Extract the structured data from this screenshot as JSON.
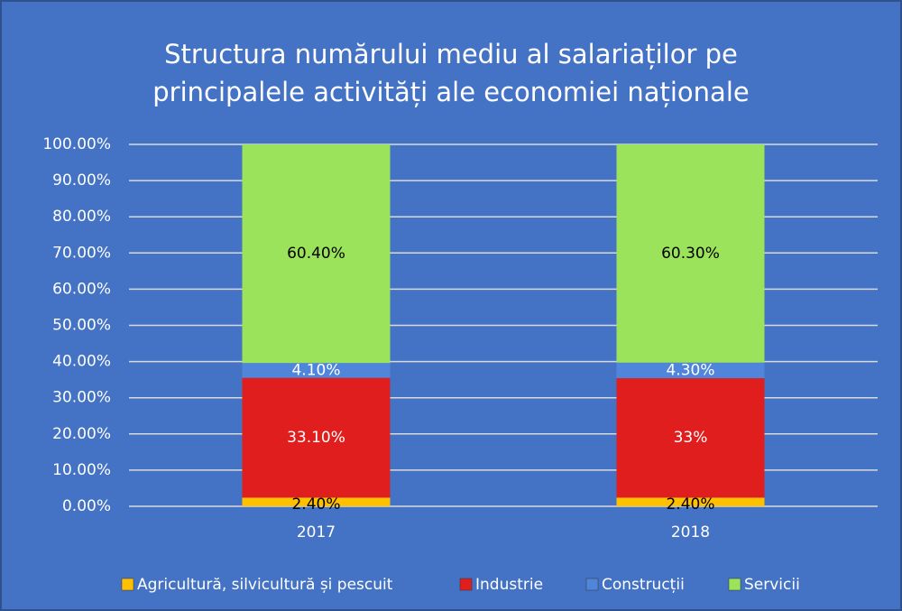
{
  "chart_data": {
    "type": "stacked_bar",
    "title": [
      "Structura numărului mediu al salariaților pe",
      "principalele activități ale economiei naționale"
    ],
    "categories": [
      "2017",
      "2018"
    ],
    "series": [
      {
        "name": "Agricultură, silvicultură și pescuit",
        "color": "#ffc000",
        "values": [
          2.4,
          2.4
        ],
        "value_labels": [
          "2.40%",
          "2.40%"
        ]
      },
      {
        "name": "Industrie",
        "color": "#e01e1e",
        "values": [
          33.1,
          33
        ],
        "value_labels": [
          "33.10%",
          "33%"
        ]
      },
      {
        "name": "Construcții",
        "color": "#4f86db",
        "values": [
          4.1,
          4.3
        ],
        "value_labels": [
          "4.10%",
          "4.30%"
        ]
      },
      {
        "name": "Servicii",
        "color": "#9be35a",
        "values": [
          60.4,
          60.3
        ],
        "value_labels": [
          "60.40%",
          "60.30%"
        ]
      }
    ],
    "ylim": [
      0,
      100
    ],
    "yticks": [
      {
        "value": 0,
        "label": "0.00%"
      },
      {
        "value": 10,
        "label": "10.00%"
      },
      {
        "value": 20,
        "label": "20.00%"
      },
      {
        "value": 30,
        "label": "30.00%"
      },
      {
        "value": 40,
        "label": "40.00%"
      },
      {
        "value": 50,
        "label": "50.00%"
      },
      {
        "value": 60,
        "label": "60.00%"
      },
      {
        "value": 70,
        "label": "70.00%"
      },
      {
        "value": 80,
        "label": "80.00%"
      },
      {
        "value": 90,
        "label": "90.00%"
      },
      {
        "value": 100,
        "label": "100.00%"
      }
    ],
    "grid": true,
    "legend": "bottom"
  }
}
